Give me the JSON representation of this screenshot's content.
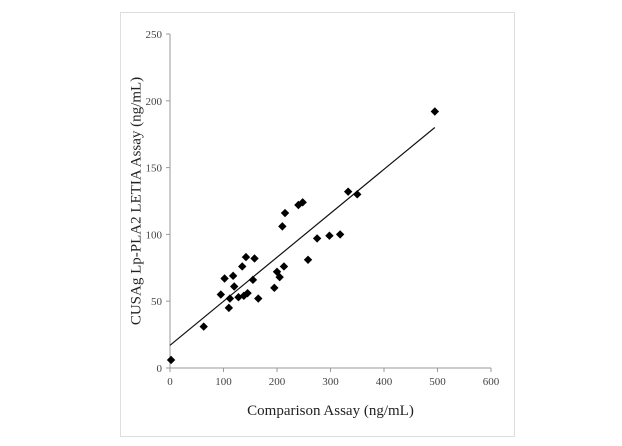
{
  "chart_data": {
    "type": "scatter",
    "xlabel": "Comparison Assay (ng/mL)",
    "ylabel": "CUSAg Lp-PLA2 LETIA Assay (ng/mL)",
    "xlim": [
      0,
      600
    ],
    "ylim": [
      0,
      250
    ],
    "xticks": [
      0,
      100,
      200,
      300,
      400,
      500,
      600
    ],
    "yticks": [
      0,
      50,
      100,
      150,
      200,
      250
    ],
    "grid": false,
    "legend": "none",
    "marker": "diamond",
    "marker_color": "#000000",
    "points": [
      {
        "x": 2,
        "y": 6
      },
      {
        "x": 63,
        "y": 31
      },
      {
        "x": 95,
        "y": 55
      },
      {
        "x": 102,
        "y": 67
      },
      {
        "x": 110,
        "y": 45
      },
      {
        "x": 112,
        "y": 52
      },
      {
        "x": 118,
        "y": 69
      },
      {
        "x": 120,
        "y": 61
      },
      {
        "x": 128,
        "y": 53
      },
      {
        "x": 135,
        "y": 76
      },
      {
        "x": 138,
        "y": 54
      },
      {
        "x": 142,
        "y": 83
      },
      {
        "x": 145,
        "y": 56
      },
      {
        "x": 155,
        "y": 66
      },
      {
        "x": 158,
        "y": 82
      },
      {
        "x": 165,
        "y": 52
      },
      {
        "x": 195,
        "y": 60
      },
      {
        "x": 200,
        "y": 72
      },
      {
        "x": 205,
        "y": 68
      },
      {
        "x": 210,
        "y": 106
      },
      {
        "x": 213,
        "y": 76
      },
      {
        "x": 215,
        "y": 116
      },
      {
        "x": 240,
        "y": 122
      },
      {
        "x": 248,
        "y": 124
      },
      {
        "x": 258,
        "y": 81
      },
      {
        "x": 275,
        "y": 97
      },
      {
        "x": 298,
        "y": 99
      },
      {
        "x": 318,
        "y": 100
      },
      {
        "x": 333,
        "y": 132
      },
      {
        "x": 350,
        "y": 130
      },
      {
        "x": 495,
        "y": 192
      }
    ],
    "trendline": {
      "x": [
        0,
        495
      ],
      "y": [
        17,
        180
      ]
    }
  }
}
